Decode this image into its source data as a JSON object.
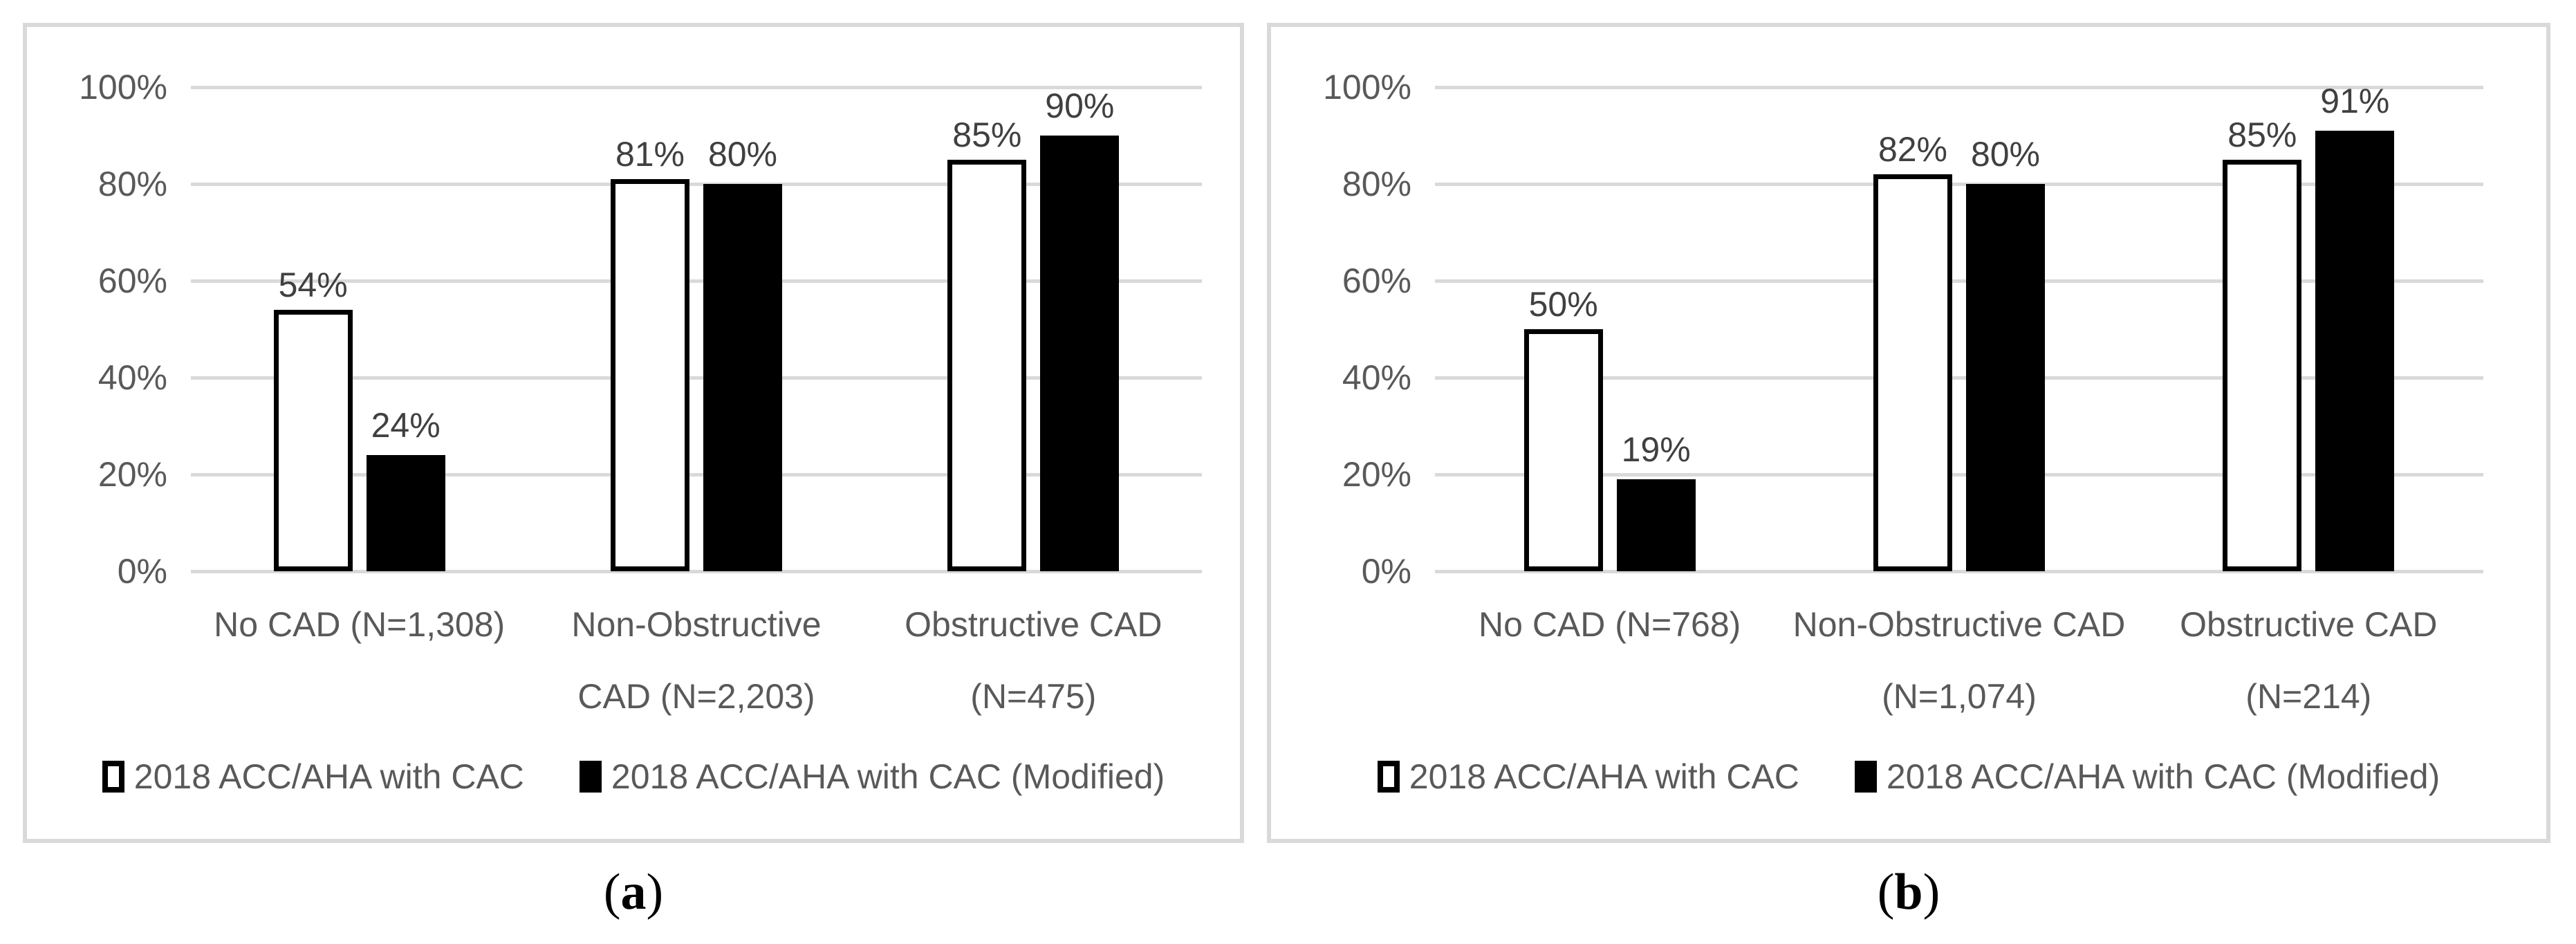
{
  "figure": {
    "colors": {
      "panel_border": "#d9d9d9",
      "gridline": "#d9d9d9",
      "axis_text": "#595959",
      "category_text": "#595959",
      "data_label_text": "#404040",
      "legend_text": "#595959",
      "series1_fill": "#ffffff",
      "series1_border": "#000000",
      "series2_fill": "#000000",
      "caption_text": "#000000"
    },
    "captions": [
      {
        "open": "(",
        "letter": "a",
        "close": ")"
      },
      {
        "open": "(",
        "letter": "b",
        "close": ")"
      }
    ]
  },
  "chart_data": [
    {
      "type": "bar",
      "panel": "a",
      "title": "",
      "xlabel": "",
      "ylabel": "",
      "ylim": [
        0,
        100
      ],
      "grid": true,
      "legend_position": "bottom",
      "y_ticks": [
        "100%",
        "80%",
        "60%",
        "40%",
        "20%",
        "0%"
      ],
      "categories": [
        "No CAD (N=1,308)",
        "Non-Obstructive CAD (N=2,203)",
        "Obstructive CAD (N=475)"
      ],
      "category_lines": [
        [
          "No CAD (N=1,308)"
        ],
        [
          "Non-Obstructive",
          "CAD (N=2,203)"
        ],
        [
          "Obstructive CAD",
          "(N=475)"
        ]
      ],
      "series": [
        {
          "name": "2018 ACC/AHA with CAC",
          "values": [
            54,
            81,
            85
          ]
        },
        {
          "name": "2018 ACC/AHA with CAC (Modified)",
          "values": [
            24,
            80,
            90
          ]
        }
      ],
      "data_labels": [
        [
          "54%",
          "81%",
          "85%"
        ],
        [
          "24%",
          "80%",
          "90%"
        ]
      ]
    },
    {
      "type": "bar",
      "panel": "b",
      "title": "",
      "xlabel": "",
      "ylabel": "",
      "ylim": [
        0,
        100
      ],
      "grid": true,
      "legend_position": "bottom",
      "y_ticks": [
        "100%",
        "80%",
        "60%",
        "40%",
        "20%",
        "0%"
      ],
      "categories": [
        "No CAD (N=768)",
        "Non-Obstructive CAD (N=1,074)",
        "Obstructive CAD (N=214)"
      ],
      "category_lines": [
        [
          "No CAD (N=768)"
        ],
        [
          "Non-Obstructive CAD",
          "(N=1,074)"
        ],
        [
          "Obstructive CAD",
          "(N=214)"
        ]
      ],
      "series": [
        {
          "name": "2018 ACC/AHA with CAC",
          "values": [
            50,
            82,
            85
          ]
        },
        {
          "name": "2018 ACC/AHA with CAC (Modified)",
          "values": [
            19,
            80,
            91
          ]
        }
      ],
      "data_labels": [
        [
          "50%",
          "82%",
          "85%"
        ],
        [
          "19%",
          "80%",
          "91%"
        ]
      ]
    }
  ]
}
